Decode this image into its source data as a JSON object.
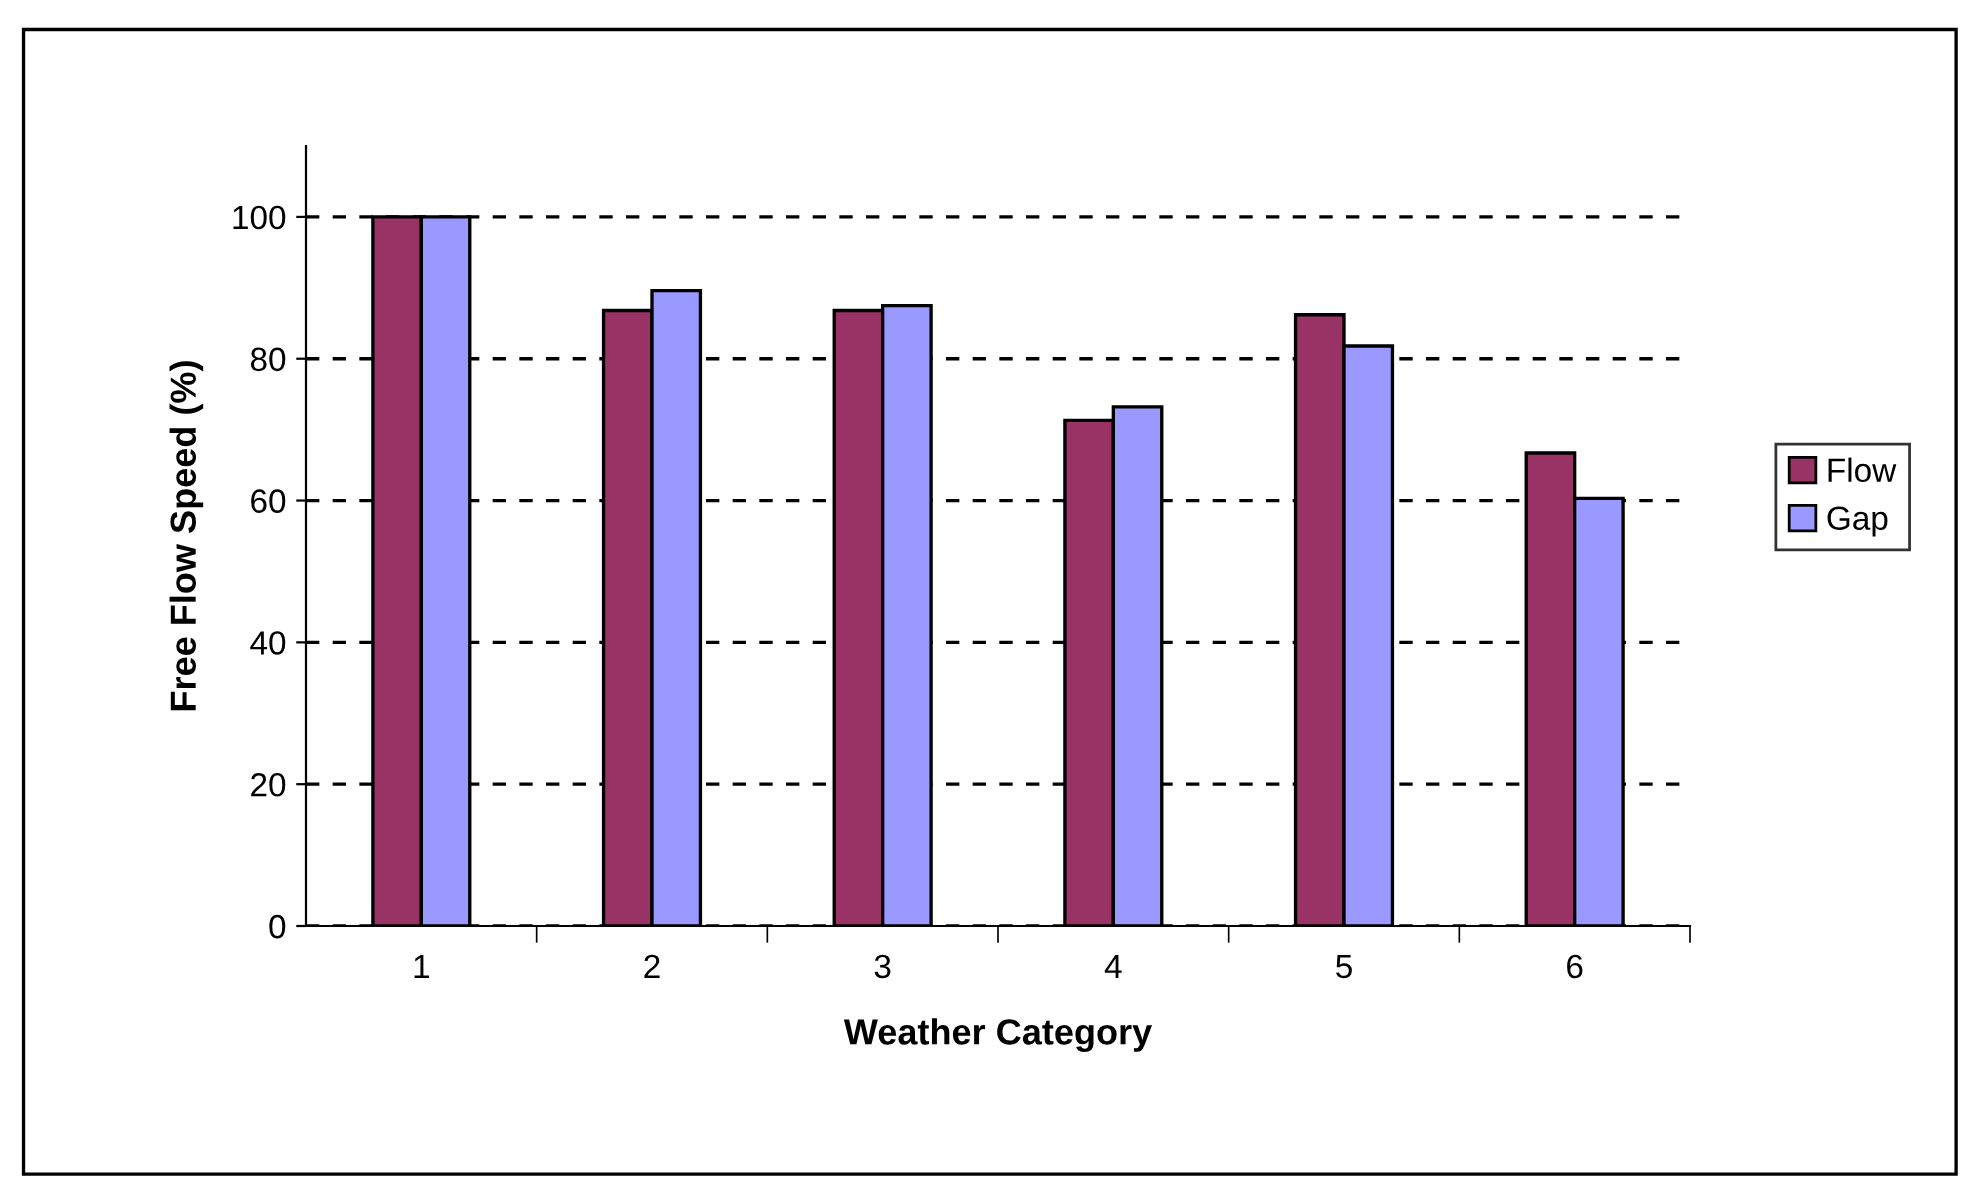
{
  "chart_data": {
    "type": "bar",
    "xlabel": "Weather Category",
    "ylabel": "Free Flow Speed (%)",
    "categories": [
      "1",
      "2",
      "3",
      "4",
      "5",
      "6"
    ],
    "series": [
      {
        "name": "Flow",
        "color": "#993366",
        "values": [
          100,
          86.8,
          86.8,
          71.3,
          86.2,
          66.7
        ]
      },
      {
        "name": "Gap",
        "color": "#9999ff",
        "values": [
          100,
          89.6,
          87.5,
          73.2,
          81.8,
          60.3
        ]
      }
    ],
    "ylim": [
      0,
      110
    ],
    "yticks": [
      0,
      20,
      40,
      60,
      80,
      100
    ],
    "grid": "y",
    "legend": "right"
  }
}
